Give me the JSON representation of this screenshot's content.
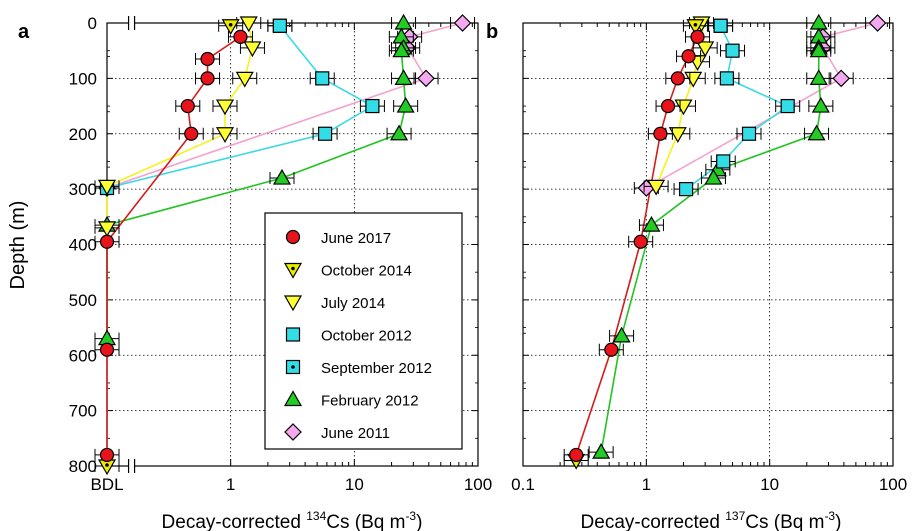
{
  "chart_data": [
    {
      "panel_label": "a",
      "type": "scatter",
      "xscale": "log",
      "xlim": [
        0.1,
        100
      ],
      "ylim": [
        800,
        0
      ],
      "xlabel_prefix": "Decay-corrected ",
      "xlabel_sup": "134",
      "xlabel_mid": "Cs (Bq m",
      "xlabel_unit_sup": "-3",
      "xlabel_suffix": ")",
      "ylabel": "Depth (m)",
      "xtick_labels": [
        {
          "x": 0.1,
          "label": "BDL"
        },
        {
          "x": 1,
          "label": "1"
        },
        {
          "x": 10,
          "label": "10"
        },
        {
          "x": 100,
          "label": "100"
        }
      ],
      "ytick_labels": [
        "0",
        "100",
        "200",
        "300",
        "400",
        "500",
        "600",
        "700",
        "800"
      ],
      "grid": true,
      "series": [
        {
          "name": "June 2017",
          "marker": "circle",
          "color": "#e8141b",
          "line": "#d41c1c",
          "points": [
            [
              1.2,
              25
            ],
            [
              0.65,
              65
            ],
            [
              0.65,
              100
            ],
            [
              0.45,
              150
            ],
            [
              0.48,
              200
            ],
            [
              0.1,
              395
            ],
            [
              0.1,
              590
            ],
            [
              0.1,
              780
            ]
          ]
        },
        {
          "name": "October 2014",
          "marker": "tri-down-dot",
          "color": "#ecec00",
          "line": null,
          "points": [
            [
              1.0,
              5
            ],
            [
              0.1,
              800
            ]
          ]
        },
        {
          "name": "July 2014",
          "marker": "tri-down",
          "color": "#ffff33",
          "line": "#f4f418",
          "points": [
            [
              1.4,
              0
            ],
            [
              1.5,
              45
            ],
            [
              1.3,
              100
            ],
            [
              0.9,
              150
            ],
            [
              0.9,
              200
            ],
            [
              0.1,
              295
            ],
            [
              0.1,
              370
            ]
          ]
        },
        {
          "name": "October 2012",
          "marker": "square",
          "color": "#33dde8",
          "line": "#3ad9e6",
          "points": [
            [
              2.5,
              5
            ],
            [
              5.5,
              100
            ],
            [
              14,
              150
            ],
            [
              5.8,
              200
            ],
            [
              0.1,
              298
            ]
          ]
        },
        {
          "name": "September 2012",
          "marker": "square-dot",
          "color": "#33dde8",
          "line": null,
          "points": [
            [
              2.5,
              5
            ]
          ]
        },
        {
          "name": "February 2012",
          "marker": "triangle",
          "color": "#22cc22",
          "line": "#22c322",
          "points": [
            [
              25,
              0
            ],
            [
              24,
              25
            ],
            [
              25,
              45
            ],
            [
              24,
              50
            ],
            [
              25,
              100
            ],
            [
              26,
              150
            ],
            [
              23,
              200
            ],
            [
              2.6,
              280
            ],
            [
              0.1,
              365
            ],
            [
              0.1,
              570
            ]
          ]
        },
        {
          "name": "June 2011",
          "marker": "diamond",
          "color": "#f4a8f0",
          "line": "#f4a2ce",
          "points": [
            [
              75,
              0
            ],
            [
              28,
              25
            ],
            [
              27,
              45
            ],
            [
              38,
              100
            ],
            [
              0.1,
              298
            ]
          ]
        }
      ]
    },
    {
      "panel_label": "b",
      "type": "scatter",
      "xscale": "log",
      "xlim": [
        0.1,
        100
      ],
      "ylim": [
        800,
        0
      ],
      "xlabel_prefix": "Decay-corrected ",
      "xlabel_sup": "137",
      "xlabel_mid": "Cs (Bq m",
      "xlabel_unit_sup": "-3",
      "xlabel_suffix": ")",
      "xtick_labels": [
        {
          "x": 0.1,
          "label": "0.1"
        },
        {
          "x": 1,
          "label": "1"
        },
        {
          "x": 10,
          "label": "10"
        },
        {
          "x": 100,
          "label": "100"
        }
      ],
      "grid": true,
      "series": [
        {
          "name": "June 2017",
          "marker": "circle",
          "color": "#e8141b",
          "line": "#d41c1c",
          "points": [
            [
              2.6,
              25
            ],
            [
              2.2,
              60
            ],
            [
              1.8,
              100
            ],
            [
              1.5,
              150
            ],
            [
              1.3,
              200
            ],
            [
              0.9,
              395
            ],
            [
              0.52,
              590
            ],
            [
              0.27,
              780
            ]
          ]
        },
        {
          "name": "October 2014",
          "marker": "tri-down-dot",
          "color": "#ecec00",
          "line": null,
          "points": [
            [
              2.5,
              5
            ],
            [
              0.27,
              790
            ]
          ]
        },
        {
          "name": "July 2014",
          "marker": "tri-down",
          "color": "#ffff33",
          "line": "#f4f418",
          "points": [
            [
              2.8,
              0
            ],
            [
              3.0,
              45
            ],
            [
              2.6,
              70
            ],
            [
              2.4,
              100
            ],
            [
              2.0,
              150
            ],
            [
              1.8,
              200
            ],
            [
              1.2,
              295
            ]
          ]
        },
        {
          "name": "October 2012",
          "marker": "square",
          "color": "#33dde8",
          "line": "#3ad9e6",
          "points": [
            [
              4.0,
              5
            ],
            [
              5.0,
              50
            ],
            [
              4.5,
              100
            ],
            [
              14,
              150
            ],
            [
              6.8,
              200
            ],
            [
              4.2,
              250
            ],
            [
              2.1,
              300
            ]
          ]
        },
        {
          "name": "September 2012",
          "marker": "square-dot",
          "color": "#33dde8",
          "line": null,
          "points": [
            [
              4.0,
              5
            ]
          ]
        },
        {
          "name": "February 2012",
          "marker": "triangle",
          "color": "#22cc22",
          "line": "#22c322",
          "points": [
            [
              25,
              0
            ],
            [
              25,
              25
            ],
            [
              25,
              45
            ],
            [
              25,
              50
            ],
            [
              25,
              100
            ],
            [
              26,
              150
            ],
            [
              24,
              200
            ],
            [
              3.8,
              265
            ],
            [
              3.5,
              280
            ],
            [
              1.1,
              365
            ],
            [
              0.63,
              565
            ],
            [
              0.43,
              775
            ]
          ]
        },
        {
          "name": "June 2011",
          "marker": "diamond",
          "color": "#f4a8f0",
          "line": "#f4a2ce",
          "points": [
            [
              75,
              0
            ],
            [
              27,
              25
            ],
            [
              27,
              45
            ],
            [
              38,
              100
            ],
            [
              1.0,
              298
            ]
          ]
        }
      ]
    }
  ]
}
